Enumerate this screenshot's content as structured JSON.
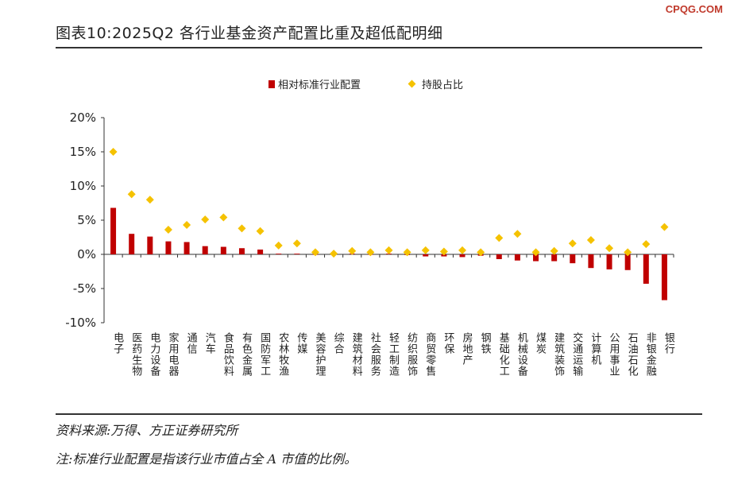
{
  "watermark": "CPQG.COM",
  "figure_title": "图表10:2025Q2 各行业基金资产配置比重及超低配明细",
  "source": "资料来源:万得、方正证券研究所",
  "note": "注:标准行业配置是指该行业市值占全 A 市值的比例。",
  "chart_data": {
    "type": "bar",
    "categories": [
      "电子",
      "医药生物",
      "电力设备",
      "家用电器",
      "通信",
      "汽车",
      "食品饮料",
      "有色金属",
      "国防军工",
      "农林牧渔",
      "传媒",
      "美容护理",
      "综合",
      "建筑材料",
      "社会服务",
      "轻工制造",
      "纺织服饰",
      "商贸零售",
      "环保",
      "房地产",
      "钢铁",
      "基础化工",
      "机械设备",
      "煤炭",
      "建筑装饰",
      "交通运输",
      "计算机",
      "公用事业",
      "石油石化",
      "非银金融",
      "银行"
    ],
    "series": [
      {
        "name": "相对标准行业配置",
        "kind": "bar",
        "color": "#c00000",
        "values": [
          6.8,
          3.0,
          2.6,
          1.9,
          1.8,
          1.2,
          1.1,
          0.9,
          0.7,
          0.1,
          0.1,
          0.0,
          0.0,
          0.1,
          0.0,
          0.1,
          -0.1,
          -0.3,
          -0.3,
          -0.4,
          -0.2,
          -0.7,
          -0.9,
          -1.0,
          -1.0,
          -1.3,
          -2.0,
          -2.2,
          -2.3,
          -4.3,
          -6.7
        ]
      },
      {
        "name": "持股占比",
        "kind": "marker",
        "color": "#f5c200",
        "values": [
          15.0,
          8.8,
          8.0,
          3.6,
          4.3,
          5.1,
          5.4,
          3.8,
          3.4,
          1.3,
          1.6,
          0.3,
          0.1,
          0.5,
          0.3,
          0.6,
          0.3,
          0.6,
          0.4,
          0.6,
          0.3,
          2.4,
          3.0,
          0.3,
          0.5,
          1.6,
          2.1,
          0.9,
          0.3,
          1.5,
          4.0
        ]
      }
    ],
    "yticks": [
      "20%",
      "15%",
      "10%",
      "5%",
      "0%",
      "-5%",
      "-10%"
    ],
    "ylim": [
      -10,
      20
    ],
    "legend_position": "top"
  }
}
